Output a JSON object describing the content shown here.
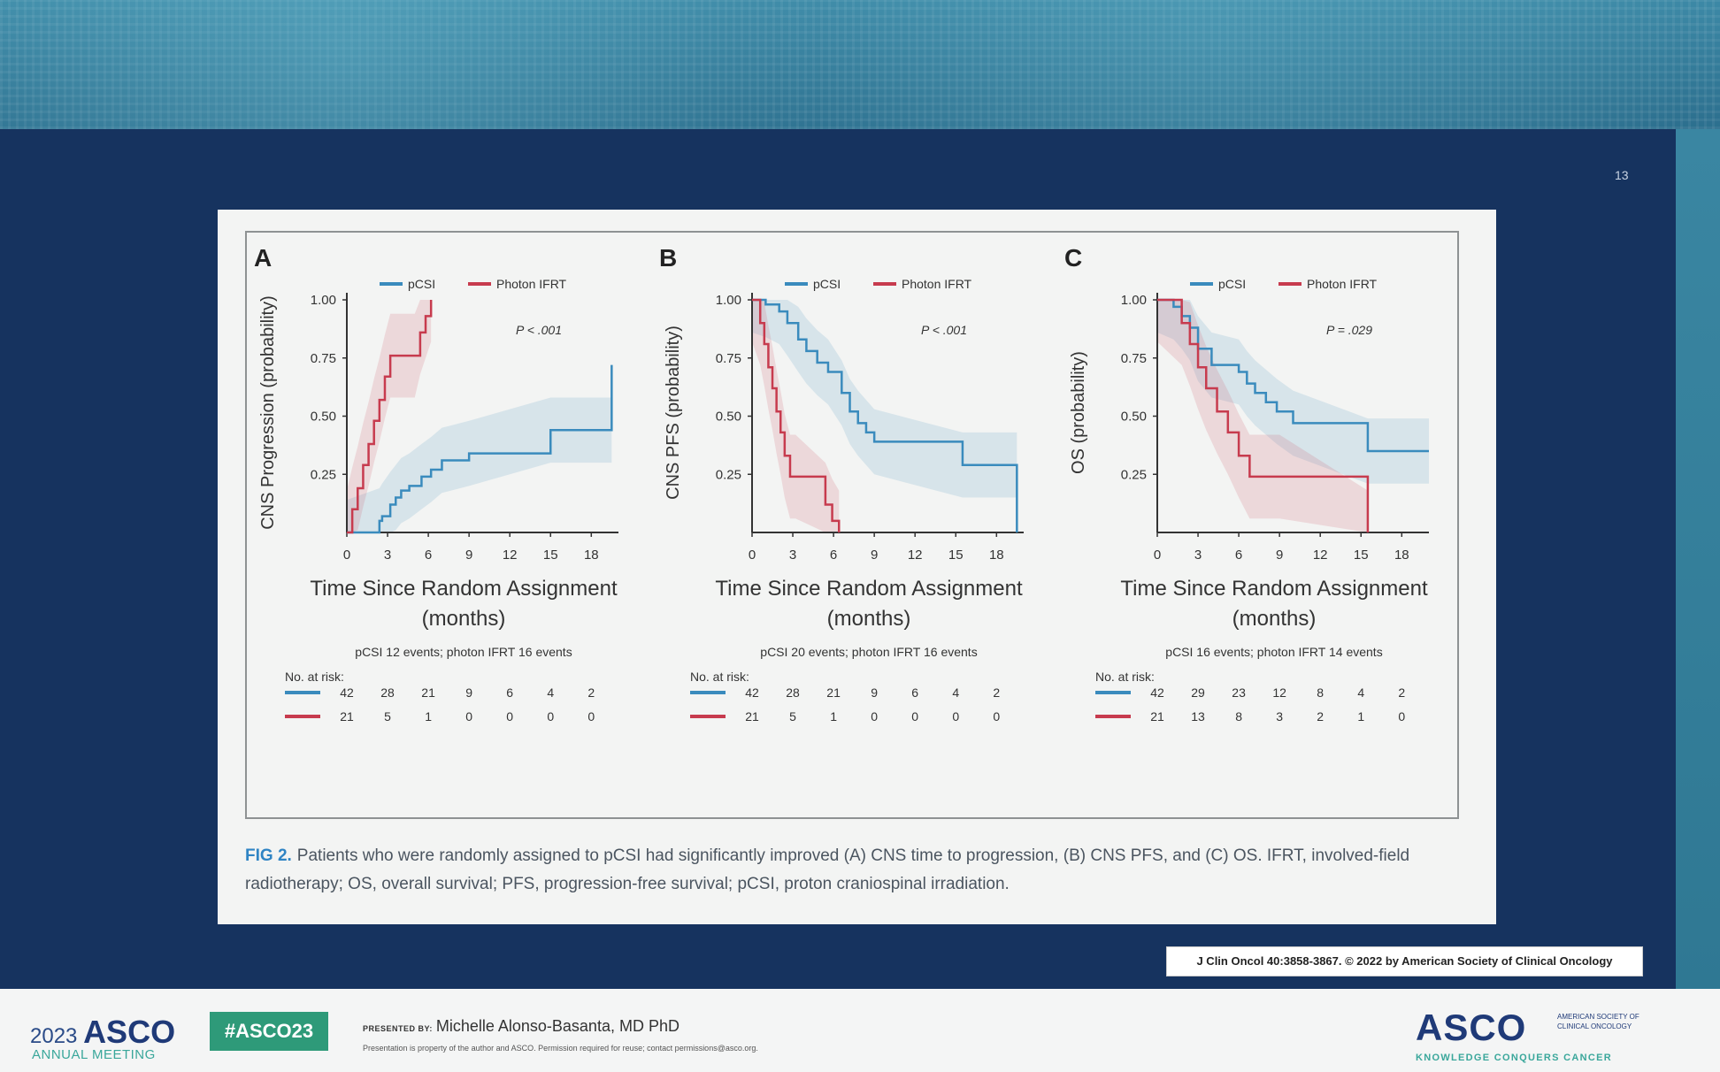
{
  "slide": {
    "number": "13"
  },
  "panels": [
    {
      "letter": "A",
      "ylabel": "CNS Progression (probability)",
      "xlabel_line1": "Time Since Random Assignment",
      "xlabel_line2": "(months)",
      "pvalue": "P < .001",
      "events": "pCSI 12 events; photon IFRT 16 events",
      "legend": [
        "pCSI",
        "Photon IFRT"
      ],
      "risk_label": "No. at risk:",
      "risk": {
        "pcsi": [
          "42",
          "28",
          "21",
          "9",
          "6",
          "4",
          "2"
        ],
        "photon": [
          "21",
          "5",
          "1",
          "0",
          "0",
          "0",
          "0"
        ]
      },
      "yticks": [
        "0.25",
        "0.50",
        "0.75",
        "1.00"
      ],
      "xticks": [
        "0",
        "3",
        "6",
        "9",
        "12",
        "15",
        "18"
      ]
    },
    {
      "letter": "B",
      "ylabel": "CNS PFS (probability)",
      "xlabel_line1": "Time Since Random Assignment",
      "xlabel_line2": "(months)",
      "pvalue": "P < .001",
      "events": "pCSI 20 events; photon IFRT 16 events",
      "legend": [
        "pCSI",
        "Photon IFRT"
      ],
      "risk_label": "No. at risk:",
      "risk": {
        "pcsi": [
          "42",
          "28",
          "21",
          "9",
          "6",
          "4",
          "2"
        ],
        "photon": [
          "21",
          "5",
          "1",
          "0",
          "0",
          "0",
          "0"
        ]
      },
      "yticks": [
        "0.25",
        "0.50",
        "0.75",
        "1.00"
      ],
      "xticks": [
        "0",
        "3",
        "6",
        "9",
        "12",
        "15",
        "18"
      ]
    },
    {
      "letter": "C",
      "ylabel": "OS (probability)",
      "xlabel_line1": "Time Since Random Assignment",
      "xlabel_line2": "(months)",
      "pvalue": "P = .029",
      "events": "pCSI 16 events; photon IFRT 14 events",
      "legend": [
        "pCSI",
        "Photon IFRT"
      ],
      "risk_label": "No. at risk:",
      "risk": {
        "pcsi": [
          "42",
          "29",
          "23",
          "12",
          "8",
          "4",
          "2"
        ],
        "photon": [
          "21",
          "13",
          "8",
          "3",
          "2",
          "1",
          "0"
        ]
      },
      "yticks": [
        "0.25",
        "0.50",
        "0.75",
        "1.00"
      ],
      "xticks": [
        "0",
        "3",
        "6",
        "9",
        "12",
        "15",
        "18"
      ]
    }
  ],
  "chart_data": [
    {
      "type": "line",
      "panel": "A",
      "ylabel": "CNS Progression (probability)",
      "xlabel": "Time Since Random Assignment (months)",
      "xlim": [
        0,
        20
      ],
      "ylim": [
        0,
        1
      ],
      "series": [
        {
          "name": "pCSI",
          "color": "#3a8bbd",
          "x": [
            0,
            2.4,
            2.6,
            3.2,
            3.6,
            4.0,
            4.6,
            5.5,
            6.2,
            7.0,
            9.0,
            15.0,
            19.5,
            19.5
          ],
          "y": [
            0,
            0.05,
            0.07,
            0.12,
            0.15,
            0.18,
            0.2,
            0.24,
            0.27,
            0.31,
            0.34,
            0.44,
            0.44,
            0.72
          ]
        },
        {
          "name": "Photon IFRT",
          "color": "#c73b4e",
          "x": [
            0,
            0.4,
            0.8,
            1.2,
            1.6,
            2.0,
            2.4,
            2.8,
            3.2,
            5.0,
            5.4,
            5.8,
            6.2
          ],
          "y": [
            0,
            0.1,
            0.19,
            0.29,
            0.38,
            0.48,
            0.57,
            0.67,
            0.76,
            0.76,
            0.86,
            0.93,
            1.0
          ]
        }
      ]
    },
    {
      "type": "line",
      "panel": "B",
      "ylabel": "CNS PFS (probability)",
      "xlabel": "Time Since Random Assignment (months)",
      "xlim": [
        0,
        20
      ],
      "ylim": [
        0,
        1
      ],
      "series": [
        {
          "name": "pCSI",
          "color": "#3a8bbd",
          "x": [
            0,
            1.0,
            2.0,
            2.6,
            3.4,
            4.0,
            4.8,
            5.6,
            6.6,
            7.2,
            7.8,
            8.4,
            9.0,
            15.5,
            19.5,
            19.5
          ],
          "y": [
            1.0,
            0.98,
            0.95,
            0.9,
            0.83,
            0.78,
            0.73,
            0.69,
            0.6,
            0.52,
            0.47,
            0.43,
            0.39,
            0.29,
            0.29,
            0.0
          ]
        },
        {
          "name": "Photon IFRT",
          "color": "#c73b4e",
          "x": [
            0,
            0.6,
            0.9,
            1.2,
            1.5,
            1.8,
            2.1,
            2.4,
            2.8,
            3.2,
            5.4,
            5.9,
            6.4
          ],
          "y": [
            1.0,
            0.9,
            0.81,
            0.71,
            0.62,
            0.52,
            0.43,
            0.33,
            0.24,
            0.24,
            0.12,
            0.05,
            0.0
          ]
        }
      ]
    },
    {
      "type": "line",
      "panel": "C",
      "ylabel": "OS (probability)",
      "xlabel": "Time Since Random Assignment (months)",
      "xlim": [
        0,
        20
      ],
      "ylim": [
        0,
        1
      ],
      "series": [
        {
          "name": "pCSI",
          "color": "#3a8bbd",
          "x": [
            0,
            1.2,
            1.8,
            2.4,
            3.0,
            4.0,
            6.0,
            6.6,
            7.2,
            8.0,
            8.8,
            10.0,
            15.5,
            20.0
          ],
          "y": [
            1.0,
            0.97,
            0.93,
            0.88,
            0.79,
            0.72,
            0.69,
            0.64,
            0.6,
            0.56,
            0.52,
            0.47,
            0.35,
            0.35
          ]
        },
        {
          "name": "Photon IFRT",
          "color": "#c73b4e",
          "x": [
            0,
            1.8,
            2.4,
            3.0,
            3.6,
            4.4,
            5.2,
            6.0,
            6.8,
            9.0,
            15.5
          ],
          "y": [
            1.0,
            0.9,
            0.81,
            0.71,
            0.62,
            0.52,
            0.43,
            0.33,
            0.24,
            0.24,
            0.0
          ]
        }
      ]
    }
  ],
  "caption": {
    "lead": "FIG 2.",
    "text": "Patients who were randomly assigned to pCSI had significantly improved (A) CNS time to progression, (B) CNS PFS, and (C) OS. IFRT, involved-field radiotherapy; OS, overall survival; PFS, progression-free survival; pCSI, proton craniospinal irradiation."
  },
  "citation": "J Clin Oncol 40:3858-3867. © 2022 by American Society of Clinical Oncology",
  "footer": {
    "year": "2023",
    "brand": "ASCO",
    "meeting": "ANNUAL MEETING",
    "hashtag": "#ASCO23",
    "presented_label": "PRESENTED BY:",
    "presenter": "Michelle Alonso-Basanta, MD PhD",
    "notice": "Presentation is property of the author and ASCO. Permission required for reuse; contact permissions@asco.org.",
    "logo": "ASCO",
    "society": "AMERICAN SOCIETY OF CLINICAL ONCOLOGY",
    "tagline": "KNOWLEDGE CONQUERS CANCER"
  },
  "colors": {
    "pcsi": "#3a8bbd",
    "photon": "#c73b4e",
    "slide_bg": "#16335f"
  }
}
